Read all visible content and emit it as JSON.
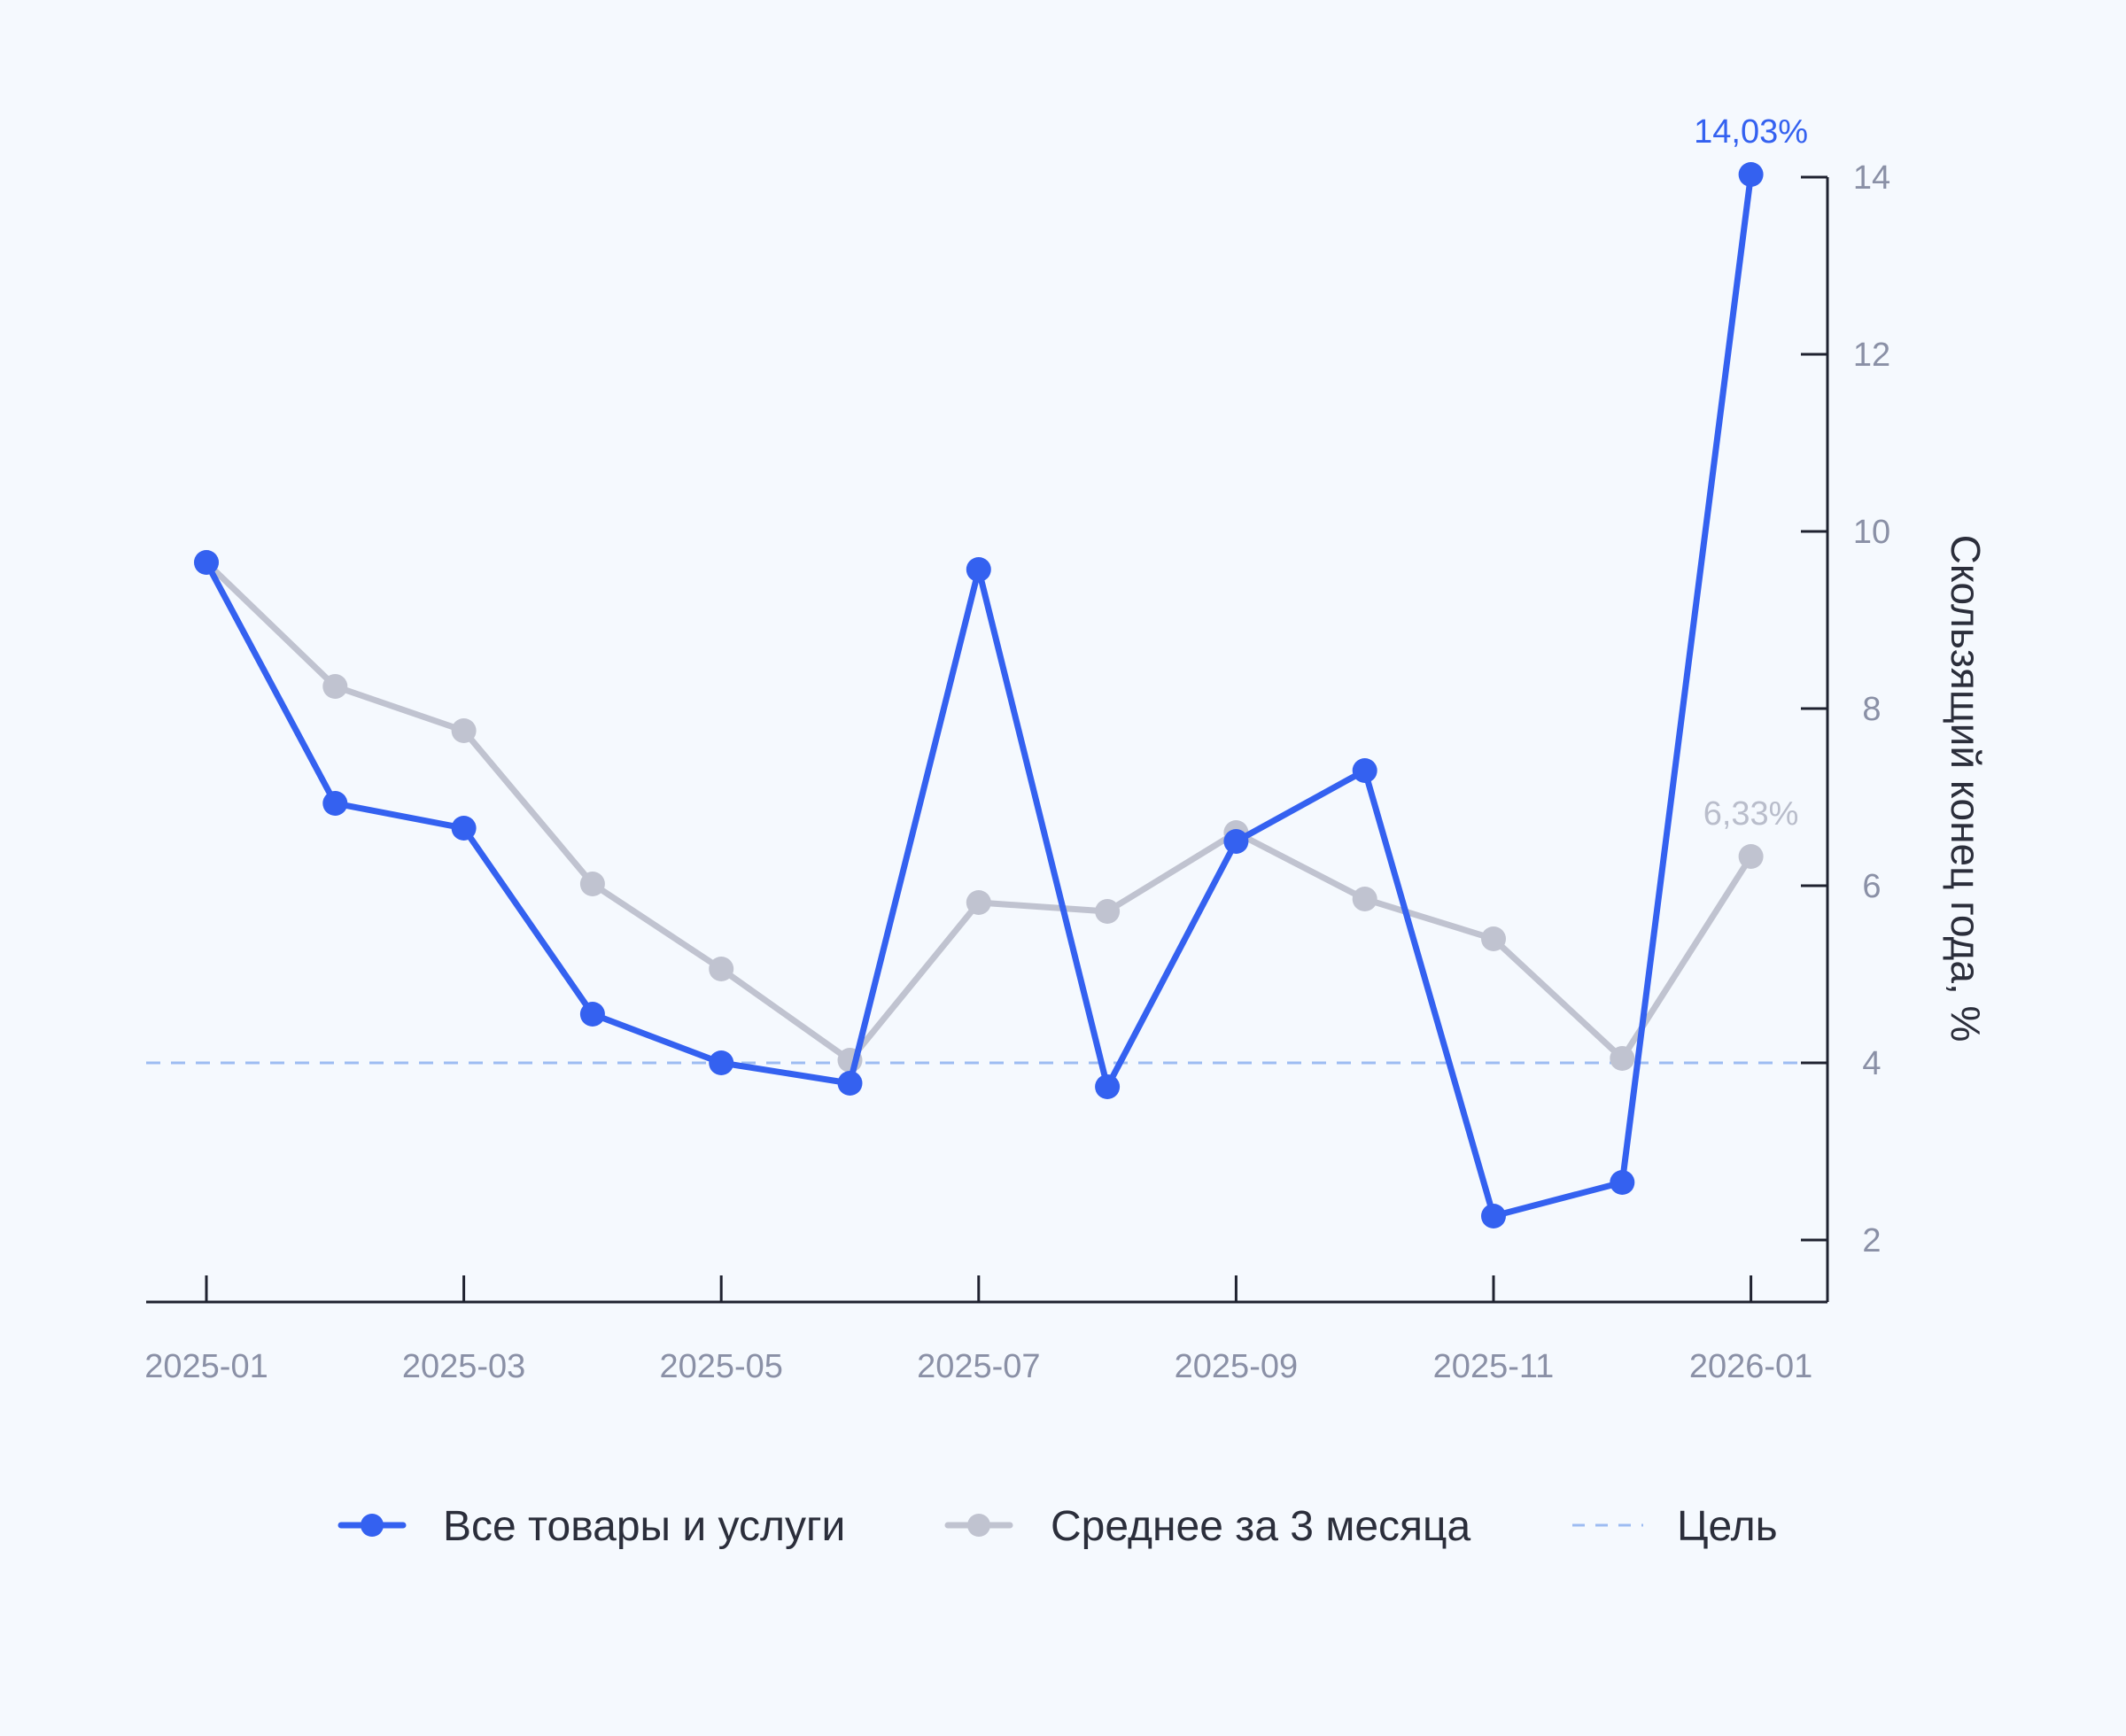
{
  "chart_data": {
    "type": "line",
    "x": [
      "2025-01",
      "2025-02",
      "2025-03",
      "2025-04",
      "2025-05",
      "2025-06",
      "2025-07",
      "2025-08",
      "2025-09",
      "2025-10",
      "2025-11",
      "2025-12",
      "2026-01"
    ],
    "xticks": [
      "2025-01",
      "2025-03",
      "2025-05",
      "2025-07",
      "2025-09",
      "2025-11",
      "2026-01"
    ],
    "series": [
      {
        "name": "Все товары и услуги",
        "color": "#3461f0",
        "values": [
          9.65,
          6.93,
          6.65,
          4.55,
          4.0,
          3.77,
          9.57,
          3.73,
          6.5,
          7.3,
          2.27,
          2.65,
          14.03
        ],
        "end_label": "14,03%"
      },
      {
        "name": "Среднее за 3 месяца",
        "color": "#c0c3d0",
        "values": [
          9.65,
          8.25,
          7.75,
          6.02,
          5.06,
          4.03,
          5.81,
          5.71,
          6.6,
          5.85,
          5.4,
          4.05,
          6.33
        ],
        "end_label": "6,33%"
      }
    ],
    "target": {
      "name": "Цель",
      "value": 4,
      "color": "#9dbcf2"
    },
    "yticks": [
      "2",
      "4",
      "6",
      "8",
      "10",
      "12",
      "14"
    ],
    "ylim": [
      1.65,
      14.4
    ],
    "ylabel": "Скользящий конец года, %",
    "yaxis_position": "right",
    "grid": false,
    "legend_position": "bottom"
  }
}
